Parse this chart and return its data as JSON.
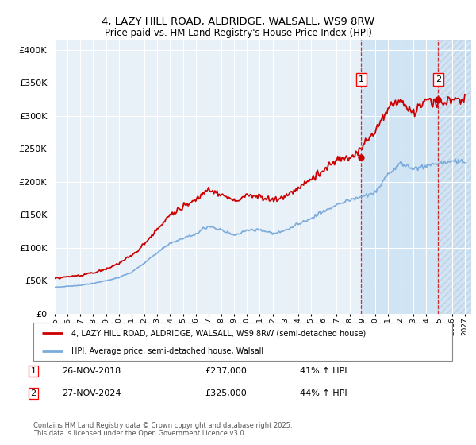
{
  "title1": "4, LAZY HILL ROAD, ALDRIDGE, WALSALL, WS9 8RW",
  "title2": "Price paid vs. HM Land Registry's House Price Index (HPI)",
  "ytick_values": [
    0,
    50000,
    100000,
    150000,
    200000,
    250000,
    300000,
    350000,
    400000
  ],
  "ylim": [
    0,
    415000
  ],
  "xlim_start": 1995.0,
  "xlim_end": 2027.5,
  "purchase1_x": 2018.91,
  "purchase1_y": 237000,
  "purchase2_x": 2024.92,
  "purchase2_y": 325000,
  "legend_line1": "4, LAZY HILL ROAD, ALDRIDGE, WALSALL, WS9 8RW (semi-detached house)",
  "legend_line2": "HPI: Average price, semi-detached house, Walsall",
  "line1_color": "#cc0000",
  "line2_color": "#7aabdb",
  "background_plot": "#e8f0f8",
  "background_shaded": "#d0e4f4",
  "grid_color": "#ffffff",
  "footer": "Contains HM Land Registry data © Crown copyright and database right 2025.\nThis data is licensed under the Open Government Licence v3.0."
}
